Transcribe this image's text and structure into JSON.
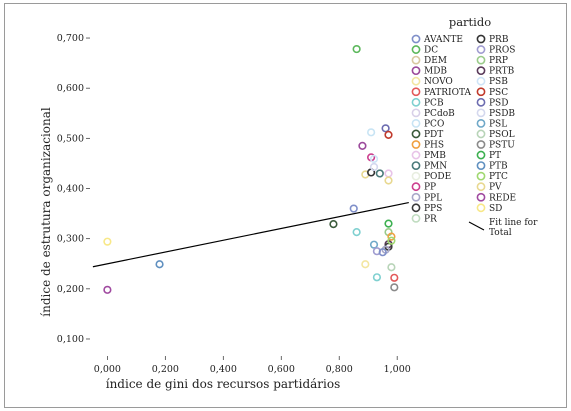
{
  "chart_data": {
    "type": "scatter",
    "xlabel": "índice de gini dos recursos partidários",
    "ylabel": "índice de estrutura organizacional",
    "xlim": [
      -0.06,
      1.02
    ],
    "ylim": [
      0.09,
      0.72
    ],
    "xticks": [
      "0,000",
      "0,200",
      "0,400",
      "0,600",
      "0,800",
      "1,000"
    ],
    "xtick_values": [
      0,
      0.2,
      0.4,
      0.6,
      0.8,
      1.0
    ],
    "yticks": [
      "0,100",
      "0,200",
      "0,300",
      "0,400",
      "0,500",
      "0,600",
      "0,700"
    ],
    "ytick_values": [
      0.1,
      0.2,
      0.3,
      0.4,
      0.5,
      0.6,
      0.7
    ],
    "legend_title": "partido",
    "legend_position": "right",
    "legend_left": [
      "AVANTE",
      "DC",
      "DEM",
      "MDB",
      "NOVO",
      "PATRIOTA",
      "PCB",
      "PCdoB",
      "PCO",
      "PDT",
      "PHS",
      "PMB",
      "PMN",
      "PODE",
      "PP",
      "PPL",
      "PPS",
      "PR"
    ],
    "legend_right": [
      "PRB",
      "PROS",
      "PRP",
      "PRTB",
      "PSB",
      "PSC",
      "PSD",
      "PSDB",
      "PSL",
      "PSOL",
      "PSTU",
      "PT",
      "PTB",
      "PTC",
      "PV",
      "REDE",
      "SD"
    ],
    "fit_line_label": [
      "Fit line for",
      "Total"
    ],
    "colors": {
      "AVANTE": "#7f8fc9",
      "DC": "#5cb85c",
      "DEM": "#d8c8a0",
      "MDB": "#9b4a9b",
      "NOVO": "#f3e6a0",
      "PATRIOTA": "#e35a5a",
      "PCB": "#7fd0d0",
      "PCdoB": "#d8d0e8",
      "PCO": "#c8e4f4",
      "PDT": "#3a5a3a",
      "PHS": "#f0a040",
      "PMB": "#e8c4e8",
      "PMN": "#4a7a7a",
      "PODE": "#e8eee0",
      "PP": "#cc3f8e",
      "PPL": "#a8a8c8",
      "PPS": "#3a3a3a",
      "PR": "#c0dcc0",
      "PRB": "#333333",
      "PROS": "#a09cd0",
      "PRP": "#9acb8a",
      "PRTB": "#5a3a5a",
      "PSB": "#cfe4f7",
      "PSC": "#c0392b",
      "PSD": "#6c6cb0",
      "PSDB": "#d4d8ee",
      "PSL": "#6fa8c8",
      "PSOL": "#b8d4b8",
      "PSTU": "#8a8a8a",
      "PT": "#3cb050",
      "PTB": "#6090c0",
      "PTC": "#a0d870",
      "PV": "#e8d890",
      "REDE": "#a04aa0",
      "SD": "#f8e888"
    },
    "points": [
      {
        "party": "REDE",
        "x": 0.0,
        "y": 0.198
      },
      {
        "party": "SD",
        "x": 0.0,
        "y": 0.294
      },
      {
        "party": "PTB",
        "x": 0.18,
        "y": 0.249
      },
      {
        "party": "PDT",
        "x": 0.78,
        "y": 0.329
      },
      {
        "party": "AVANTE",
        "x": 0.85,
        "y": 0.36
      },
      {
        "party": "PCB",
        "x": 0.86,
        "y": 0.313
      },
      {
        "party": "DC",
        "x": 0.86,
        "y": 0.678
      },
      {
        "party": "MDB",
        "x": 0.88,
        "y": 0.485
      },
      {
        "party": "PV",
        "x": 0.89,
        "y": 0.428
      },
      {
        "party": "NOVO",
        "x": 0.89,
        "y": 0.249
      },
      {
        "party": "PP",
        "x": 0.91,
        "y": 0.462
      },
      {
        "party": "PRB",
        "x": 0.91,
        "y": 0.432
      },
      {
        "party": "PCO",
        "x": 0.91,
        "y": 0.512
      },
      {
        "party": "PSB",
        "x": 0.92,
        "y": 0.459
      },
      {
        "party": "PSDB",
        "x": 0.92,
        "y": 0.443
      },
      {
        "party": "PSL",
        "x": 0.92,
        "y": 0.288
      },
      {
        "party": "PROS",
        "x": 0.93,
        "y": 0.275
      },
      {
        "party": "PCB",
        "x": 0.93,
        "y": 0.223
      },
      {
        "party": "PMN",
        "x": 0.94,
        "y": 0.43
      },
      {
        "party": "PSD",
        "x": 0.96,
        "y": 0.52
      },
      {
        "party": "PSC",
        "x": 0.97,
        "y": 0.507
      },
      {
        "party": "PMB",
        "x": 0.97,
        "y": 0.43
      },
      {
        "party": "PV",
        "x": 0.97,
        "y": 0.416
      },
      {
        "party": "PT",
        "x": 0.97,
        "y": 0.33
      },
      {
        "party": "PRP",
        "x": 0.97,
        "y": 0.313
      },
      {
        "party": "PRTB",
        "x": 0.97,
        "y": 0.289
      },
      {
        "party": "PPS",
        "x": 0.97,
        "y": 0.284
      },
      {
        "party": "PHS",
        "x": 0.98,
        "y": 0.304
      },
      {
        "party": "PTC",
        "x": 0.98,
        "y": 0.296
      },
      {
        "party": "PPL",
        "x": 0.96,
        "y": 0.278
      },
      {
        "party": "AVANTE",
        "x": 0.95,
        "y": 0.273
      },
      {
        "party": "PSOL",
        "x": 0.98,
        "y": 0.243
      },
      {
        "party": "PATRIOTA",
        "x": 0.99,
        "y": 0.222
      },
      {
        "party": "PSTU",
        "x": 0.99,
        "y": 0.203
      }
    ],
    "fit_line": {
      "x": [
        -0.05,
        1.04
      ],
      "y": [
        0.244,
        0.372
      ]
    }
  }
}
